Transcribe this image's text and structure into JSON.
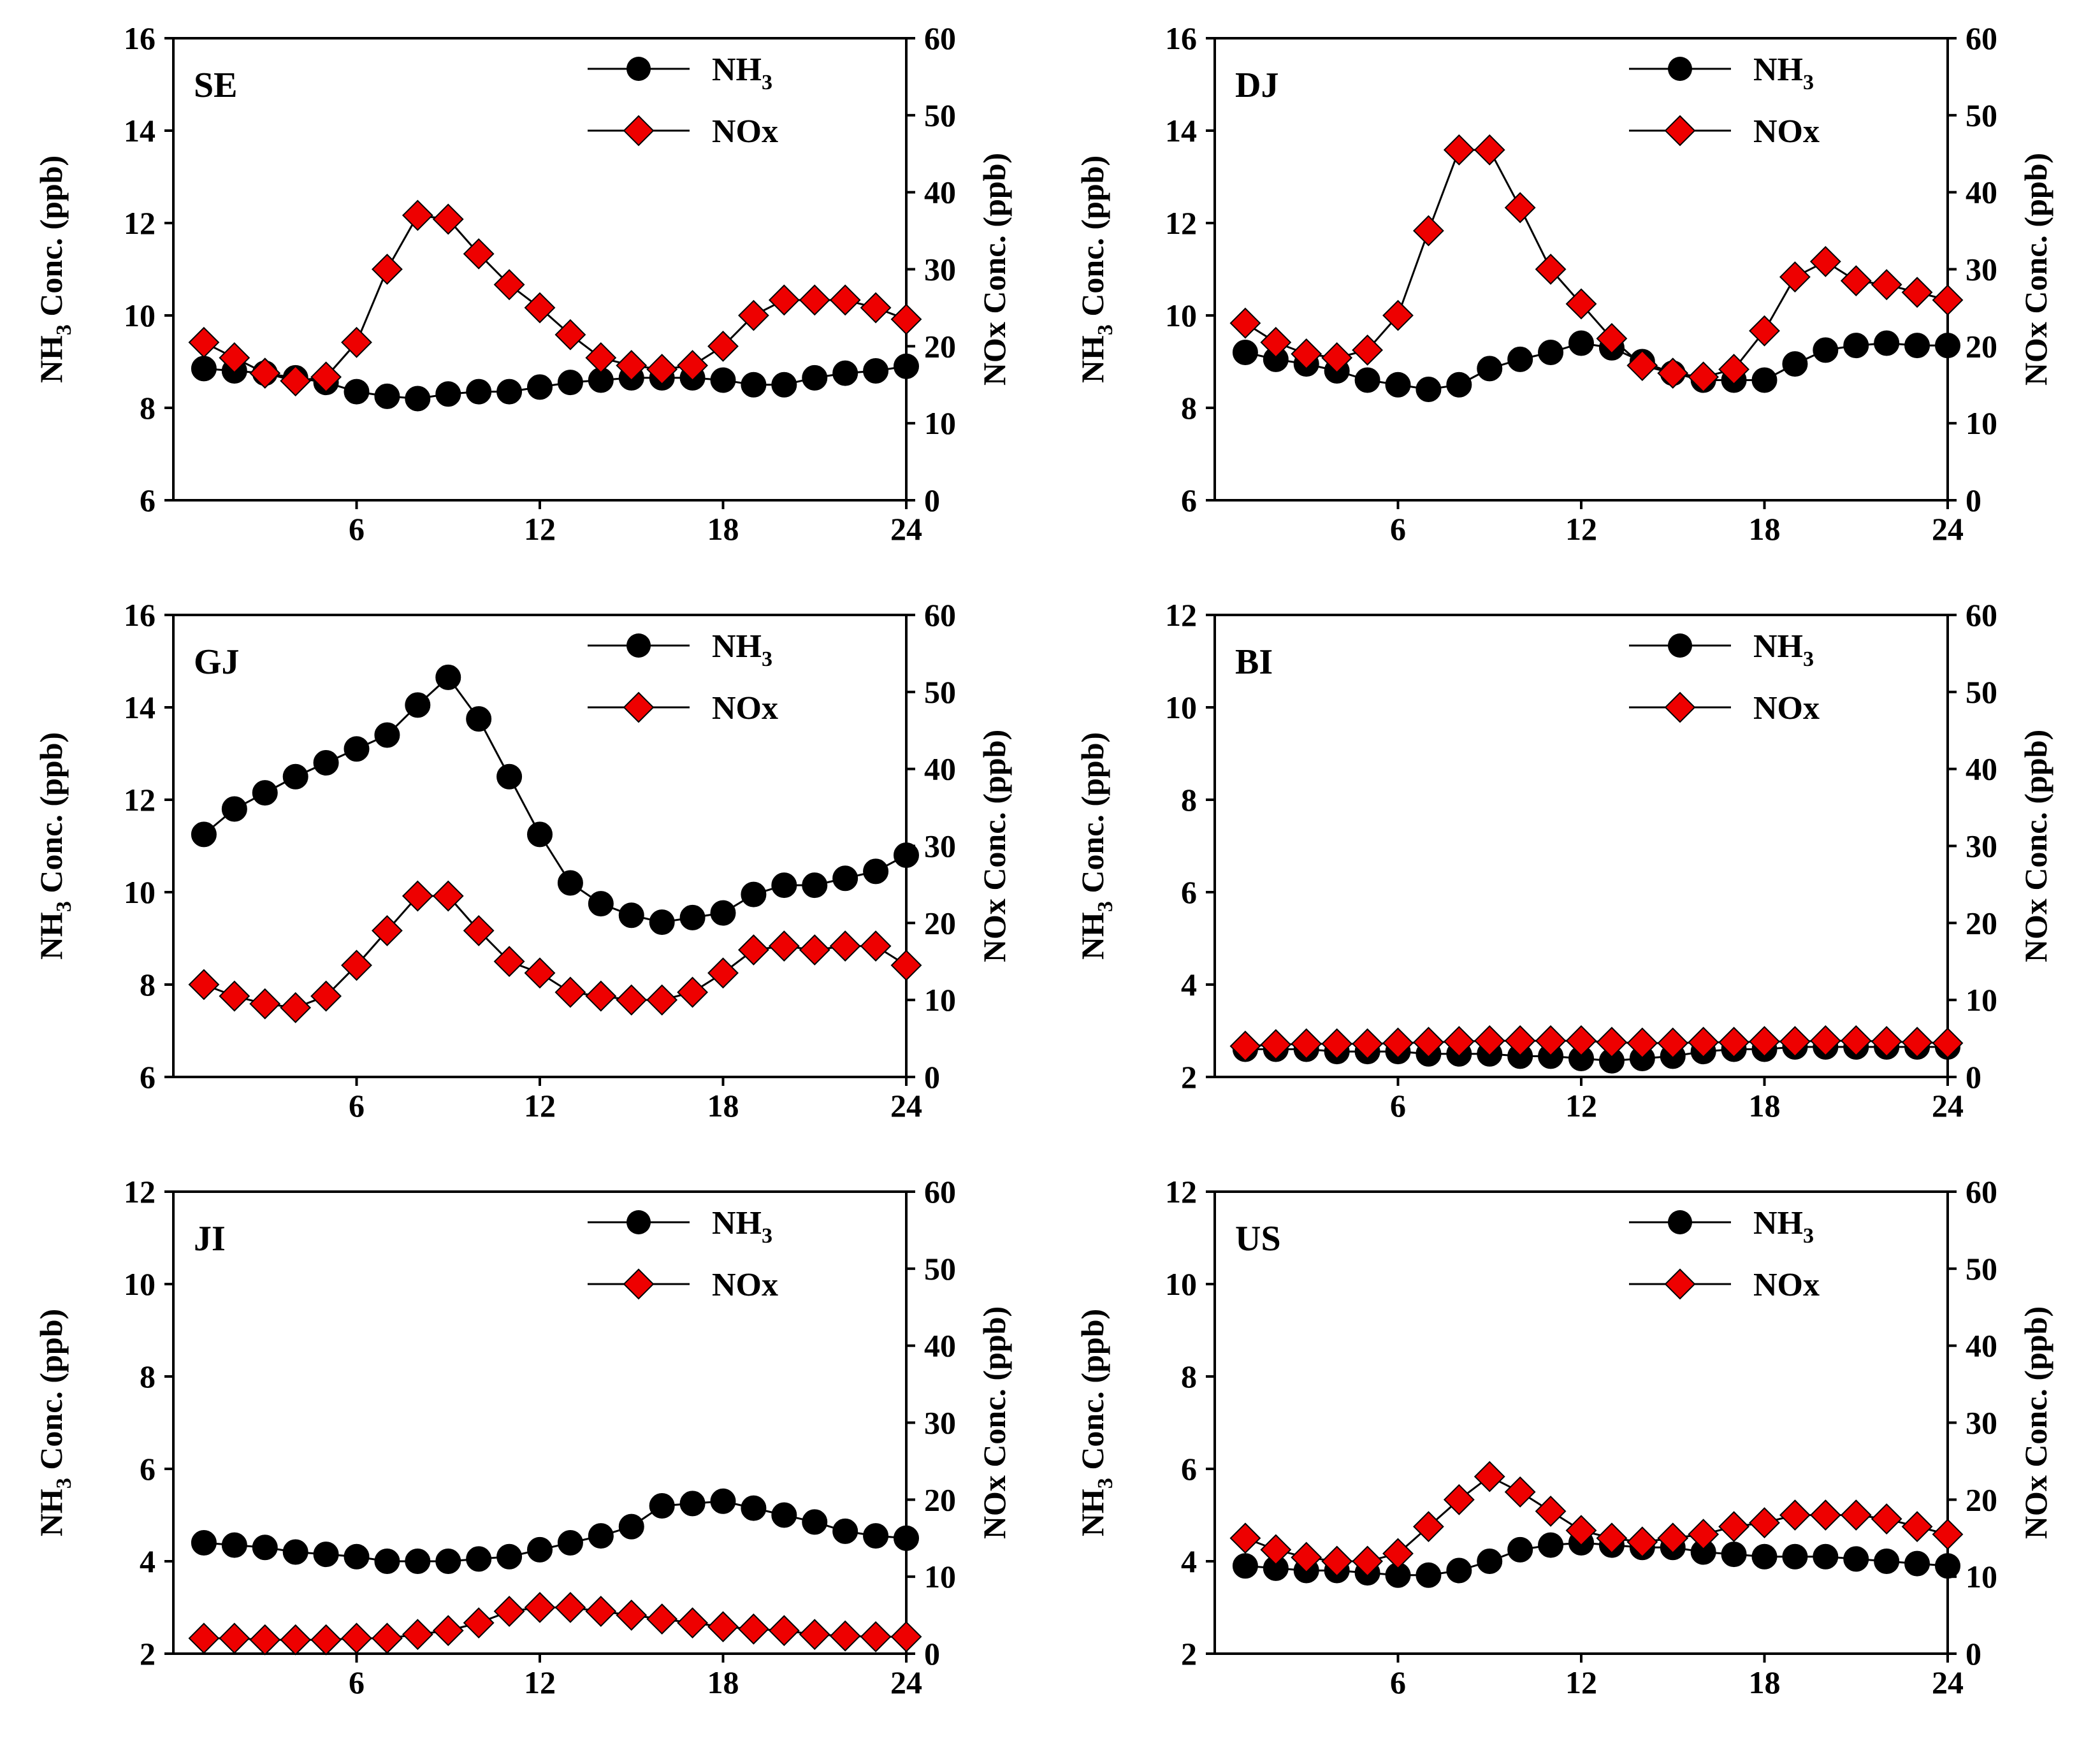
{
  "colors": {
    "nh3_fill": "#000000",
    "nox_fill": "#ee0000",
    "line": "#000000",
    "background": "#ffffff"
  },
  "chart_data": [
    {
      "type": "line",
      "panel": "SE",
      "xlim": [
        0,
        24
      ],
      "xticks": [
        6,
        12,
        18,
        24
      ],
      "ylim_left": [
        6,
        16
      ],
      "yticks_left": [
        6,
        8,
        10,
        12,
        14,
        16
      ],
      "ylim_right": [
        0,
        60
      ],
      "yticks_right": [
        0,
        10,
        20,
        30,
        40,
        50,
        60
      ],
      "ylabel_left": "NH3 Conc. (ppb)",
      "ylabel_right": "NOx Conc. (ppb)",
      "x": [
        1,
        2,
        3,
        4,
        5,
        6,
        7,
        8,
        9,
        10,
        11,
        12,
        13,
        14,
        15,
        16,
        17,
        18,
        19,
        20,
        21,
        22,
        23,
        24
      ],
      "series": [
        {
          "name": "NH3",
          "axis": "left",
          "marker": "circle",
          "values": [
            8.85,
            8.8,
            8.75,
            8.65,
            8.55,
            8.35,
            8.25,
            8.2,
            8.3,
            8.35,
            8.35,
            8.45,
            8.55,
            8.6,
            8.65,
            8.65,
            8.65,
            8.6,
            8.5,
            8.5,
            8.65,
            8.75,
            8.8,
            8.9
          ]
        },
        {
          "name": "NOx",
          "axis": "right",
          "marker": "diamond",
          "values": [
            20.5,
            18.5,
            16.5,
            15.5,
            16,
            20.5,
            30,
            37,
            36.5,
            32,
            28,
            25,
            21.5,
            18.5,
            17.5,
            17,
            17.5,
            20,
            24,
            26,
            26,
            26,
            25,
            23.5
          ]
        }
      ],
      "legend": [
        {
          "label": "NH",
          "sub": "3"
        },
        {
          "label": "NOx",
          "sub": ""
        }
      ]
    },
    {
      "type": "line",
      "panel": "DJ",
      "xlim": [
        0,
        24
      ],
      "xticks": [
        6,
        12,
        18,
        24
      ],
      "ylim_left": [
        6,
        16
      ],
      "yticks_left": [
        6,
        8,
        10,
        12,
        14,
        16
      ],
      "ylim_right": [
        0,
        60
      ],
      "yticks_right": [
        0,
        10,
        20,
        30,
        40,
        50,
        60
      ],
      "ylabel_left": "NH3 Conc. (ppb)",
      "ylabel_right": "NOx Conc. (ppb)",
      "x": [
        1,
        2,
        3,
        4,
        5,
        6,
        7,
        8,
        9,
        10,
        11,
        12,
        13,
        14,
        15,
        16,
        17,
        18,
        19,
        20,
        21,
        22,
        23,
        24
      ],
      "series": [
        {
          "name": "NH3",
          "axis": "left",
          "marker": "circle",
          "values": [
            9.2,
            9.05,
            8.95,
            8.8,
            8.6,
            8.5,
            8.4,
            8.5,
            8.85,
            9.05,
            9.2,
            9.4,
            9.3,
            9.0,
            8.75,
            8.6,
            8.6,
            8.6,
            8.95,
            9.25,
            9.35,
            9.4,
            9.35,
            9.35
          ]
        },
        {
          "name": "NOx",
          "axis": "right",
          "marker": "diamond",
          "values": [
            23,
            20.5,
            19,
            18.5,
            19.5,
            24,
            35,
            45.5,
            45.5,
            38,
            30,
            25.5,
            21,
            17.5,
            16.5,
            16,
            17,
            22,
            29,
            31,
            28.5,
            28,
            27,
            26
          ]
        }
      ],
      "legend": [
        {
          "label": "NH",
          "sub": "3"
        },
        {
          "label": "NOx",
          "sub": ""
        }
      ]
    },
    {
      "type": "line",
      "panel": "GJ",
      "xlim": [
        0,
        24
      ],
      "xticks": [
        6,
        12,
        18,
        24
      ],
      "ylim_left": [
        6,
        16
      ],
      "yticks_left": [
        6,
        8,
        10,
        12,
        14,
        16
      ],
      "ylim_right": [
        0,
        60
      ],
      "yticks_right": [
        0,
        10,
        20,
        30,
        40,
        50,
        60
      ],
      "ylabel_left": "NH3 Conc. (ppb)",
      "ylabel_right": "NOx Conc. (ppb)",
      "x": [
        1,
        2,
        3,
        4,
        5,
        6,
        7,
        8,
        9,
        10,
        11,
        12,
        13,
        14,
        15,
        16,
        17,
        18,
        19,
        20,
        21,
        22,
        23,
        24
      ],
      "series": [
        {
          "name": "NH3",
          "axis": "left",
          "marker": "circle",
          "values": [
            11.25,
            11.8,
            12.15,
            12.5,
            12.8,
            13.1,
            13.4,
            14.05,
            14.65,
            13.75,
            12.5,
            11.25,
            10.2,
            9.75,
            9.5,
            9.35,
            9.45,
            9.55,
            9.95,
            10.15,
            10.15,
            10.3,
            10.45,
            10.8
          ]
        },
        {
          "name": "NOx",
          "axis": "right",
          "marker": "diamond",
          "values": [
            12,
            10.5,
            9.5,
            9,
            10.5,
            14.5,
            19,
            23.5,
            23.5,
            19,
            15,
            13.5,
            11,
            10.5,
            10,
            10,
            11,
            13.5,
            16.5,
            17,
            16.5,
            17,
            17,
            14.5
          ]
        }
      ],
      "legend": [
        {
          "label": "NH",
          "sub": "3"
        },
        {
          "label": "NOx",
          "sub": ""
        }
      ]
    },
    {
      "type": "line",
      "panel": "BI",
      "xlim": [
        0,
        24
      ],
      "xticks": [
        6,
        12,
        18,
        24
      ],
      "ylim_left": [
        2,
        12
      ],
      "yticks_left": [
        2,
        4,
        6,
        8,
        10,
        12
      ],
      "ylim_right": [
        0,
        60
      ],
      "yticks_right": [
        0,
        10,
        20,
        30,
        40,
        50,
        60
      ],
      "ylabel_left": "NH3 Conc. (ppb)",
      "ylabel_right": "NOx Conc. (ppb)",
      "x": [
        1,
        2,
        3,
        4,
        5,
        6,
        7,
        8,
        9,
        10,
        11,
        12,
        13,
        14,
        15,
        16,
        17,
        18,
        19,
        20,
        21,
        22,
        23,
        24
      ],
      "series": [
        {
          "name": "NH3",
          "axis": "left",
          "marker": "circle",
          "values": [
            2.6,
            2.6,
            2.6,
            2.55,
            2.55,
            2.55,
            2.5,
            2.5,
            2.5,
            2.45,
            2.45,
            2.4,
            2.35,
            2.4,
            2.45,
            2.55,
            2.6,
            2.6,
            2.65,
            2.65,
            2.65,
            2.65,
            2.65,
            2.65
          ]
        },
        {
          "name": "NOx",
          "axis": "right",
          "marker": "diamond",
          "values": [
            4,
            4.2,
            4.3,
            4.3,
            4.3,
            4.4,
            4.5,
            4.6,
            4.7,
            4.7,
            4.7,
            4.7,
            4.5,
            4.4,
            4.4,
            4.5,
            4.5,
            4.6,
            4.6,
            4.7,
            4.7,
            4.6,
            4.5,
            4.4
          ]
        }
      ],
      "legend": [
        {
          "label": "NH",
          "sub": "3"
        },
        {
          "label": "NOx",
          "sub": ""
        }
      ]
    },
    {
      "type": "line",
      "panel": "JI",
      "xlim": [
        0,
        24
      ],
      "xticks": [
        6,
        12,
        18,
        24
      ],
      "ylim_left": [
        2,
        12
      ],
      "yticks_left": [
        2,
        4,
        6,
        8,
        10,
        12
      ],
      "ylim_right": [
        0,
        60
      ],
      "yticks_right": [
        0,
        10,
        20,
        30,
        40,
        50,
        60
      ],
      "ylabel_left": "NH3 Conc. (ppb)",
      "ylabel_right": "NOx Conc. (ppb)",
      "x": [
        1,
        2,
        3,
        4,
        5,
        6,
        7,
        8,
        9,
        10,
        11,
        12,
        13,
        14,
        15,
        16,
        17,
        18,
        19,
        20,
        21,
        22,
        23,
        24
      ],
      "series": [
        {
          "name": "NH3",
          "axis": "left",
          "marker": "circle",
          "values": [
            4.4,
            4.35,
            4.3,
            4.2,
            4.15,
            4.1,
            4.0,
            4.0,
            4.0,
            4.05,
            4.1,
            4.25,
            4.4,
            4.55,
            4.75,
            5.2,
            5.25,
            5.3,
            5.15,
            5.0,
            4.85,
            4.65,
            4.55,
            4.5
          ]
        },
        {
          "name": "NOx",
          "axis": "right",
          "marker": "diamond",
          "values": [
            2,
            2,
            1.8,
            1.8,
            1.8,
            2,
            2,
            2.5,
            3,
            4,
            5.5,
            6,
            6,
            5.5,
            5,
            4.5,
            4,
            3.5,
            3.2,
            3,
            2.5,
            2.3,
            2.2,
            2.2
          ]
        }
      ],
      "legend": [
        {
          "label": "NH",
          "sub": "3"
        },
        {
          "label": "NOx",
          "sub": ""
        }
      ]
    },
    {
      "type": "line",
      "panel": "US",
      "xlim": [
        0,
        24
      ],
      "xticks": [
        6,
        12,
        18,
        24
      ],
      "ylim_left": [
        2,
        12
      ],
      "yticks_left": [
        2,
        4,
        6,
        8,
        10,
        12
      ],
      "ylim_right": [
        0,
        60
      ],
      "yticks_right": [
        0,
        10,
        20,
        30,
        40,
        50,
        60
      ],
      "ylabel_left": "NH3 Conc. (ppb)",
      "ylabel_right": "NOx Conc. (ppb)",
      "x": [
        1,
        2,
        3,
        4,
        5,
        6,
        7,
        8,
        9,
        10,
        11,
        12,
        13,
        14,
        15,
        16,
        17,
        18,
        19,
        20,
        21,
        22,
        23,
        24
      ],
      "series": [
        {
          "name": "NH3",
          "axis": "left",
          "marker": "circle",
          "values": [
            3.9,
            3.85,
            3.8,
            3.8,
            3.75,
            3.7,
            3.7,
            3.8,
            4.0,
            4.25,
            4.35,
            4.4,
            4.35,
            4.3,
            4.3,
            4.2,
            4.15,
            4.1,
            4.1,
            4.1,
            4.05,
            4.0,
            3.95,
            3.9
          ]
        },
        {
          "name": "NOx",
          "axis": "right",
          "marker": "diamond",
          "values": [
            15,
            13.5,
            12.5,
            12,
            12,
            13,
            16.5,
            20,
            23,
            21,
            18.5,
            16,
            15,
            14.5,
            15,
            15.5,
            16.5,
            17,
            18,
            18,
            18,
            17.5,
            16.5,
            15.5
          ]
        }
      ],
      "legend": [
        {
          "label": "NH",
          "sub": "3"
        },
        {
          "label": "NOx",
          "sub": ""
        }
      ]
    }
  ]
}
